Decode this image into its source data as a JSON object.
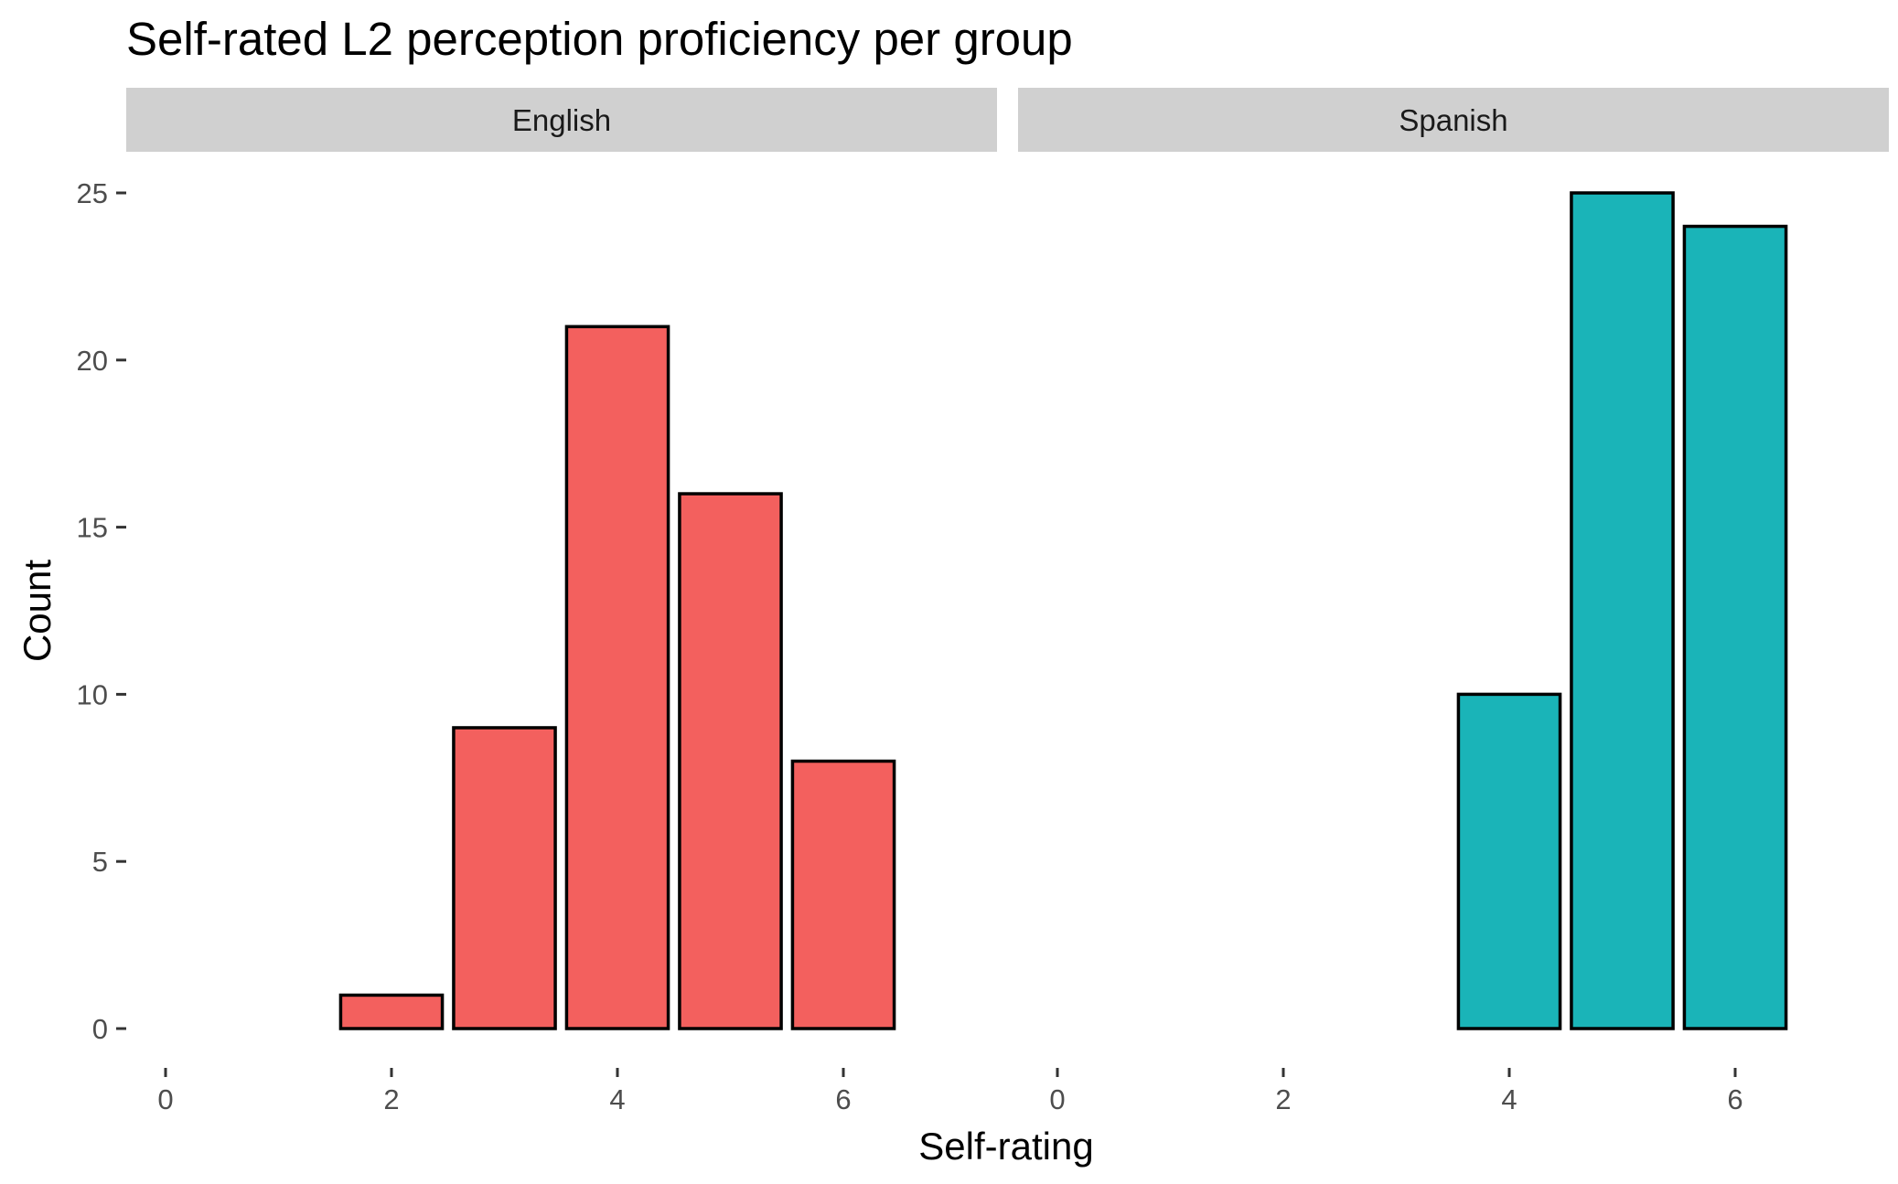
{
  "chart_data": {
    "type": "bar",
    "title": "Self-rated L2 perception proficiency per group",
    "xlabel": "Self-rating",
    "ylabel": "Count",
    "ylim": [
      0,
      25
    ],
    "xlim": [
      0,
      7
    ],
    "x_ticks": [
      "0",
      "2",
      "4",
      "6"
    ],
    "y_ticks": [
      "0",
      "5",
      "10",
      "15",
      "20",
      "25"
    ],
    "grid": false,
    "legend": "none",
    "facets": [
      {
        "name": "English",
        "color": "#F3605E",
        "x": [
          2,
          3,
          4,
          5,
          6
        ],
        "values": [
          1,
          9,
          21,
          16,
          8
        ]
      },
      {
        "name": "Spanish",
        "color": "#1AB4B8",
        "x": [
          4,
          5,
          6
        ],
        "values": [
          10,
          25,
          24
        ]
      }
    ],
    "strip_color": "#D0D0D0",
    "bar_outline": "#000000"
  }
}
